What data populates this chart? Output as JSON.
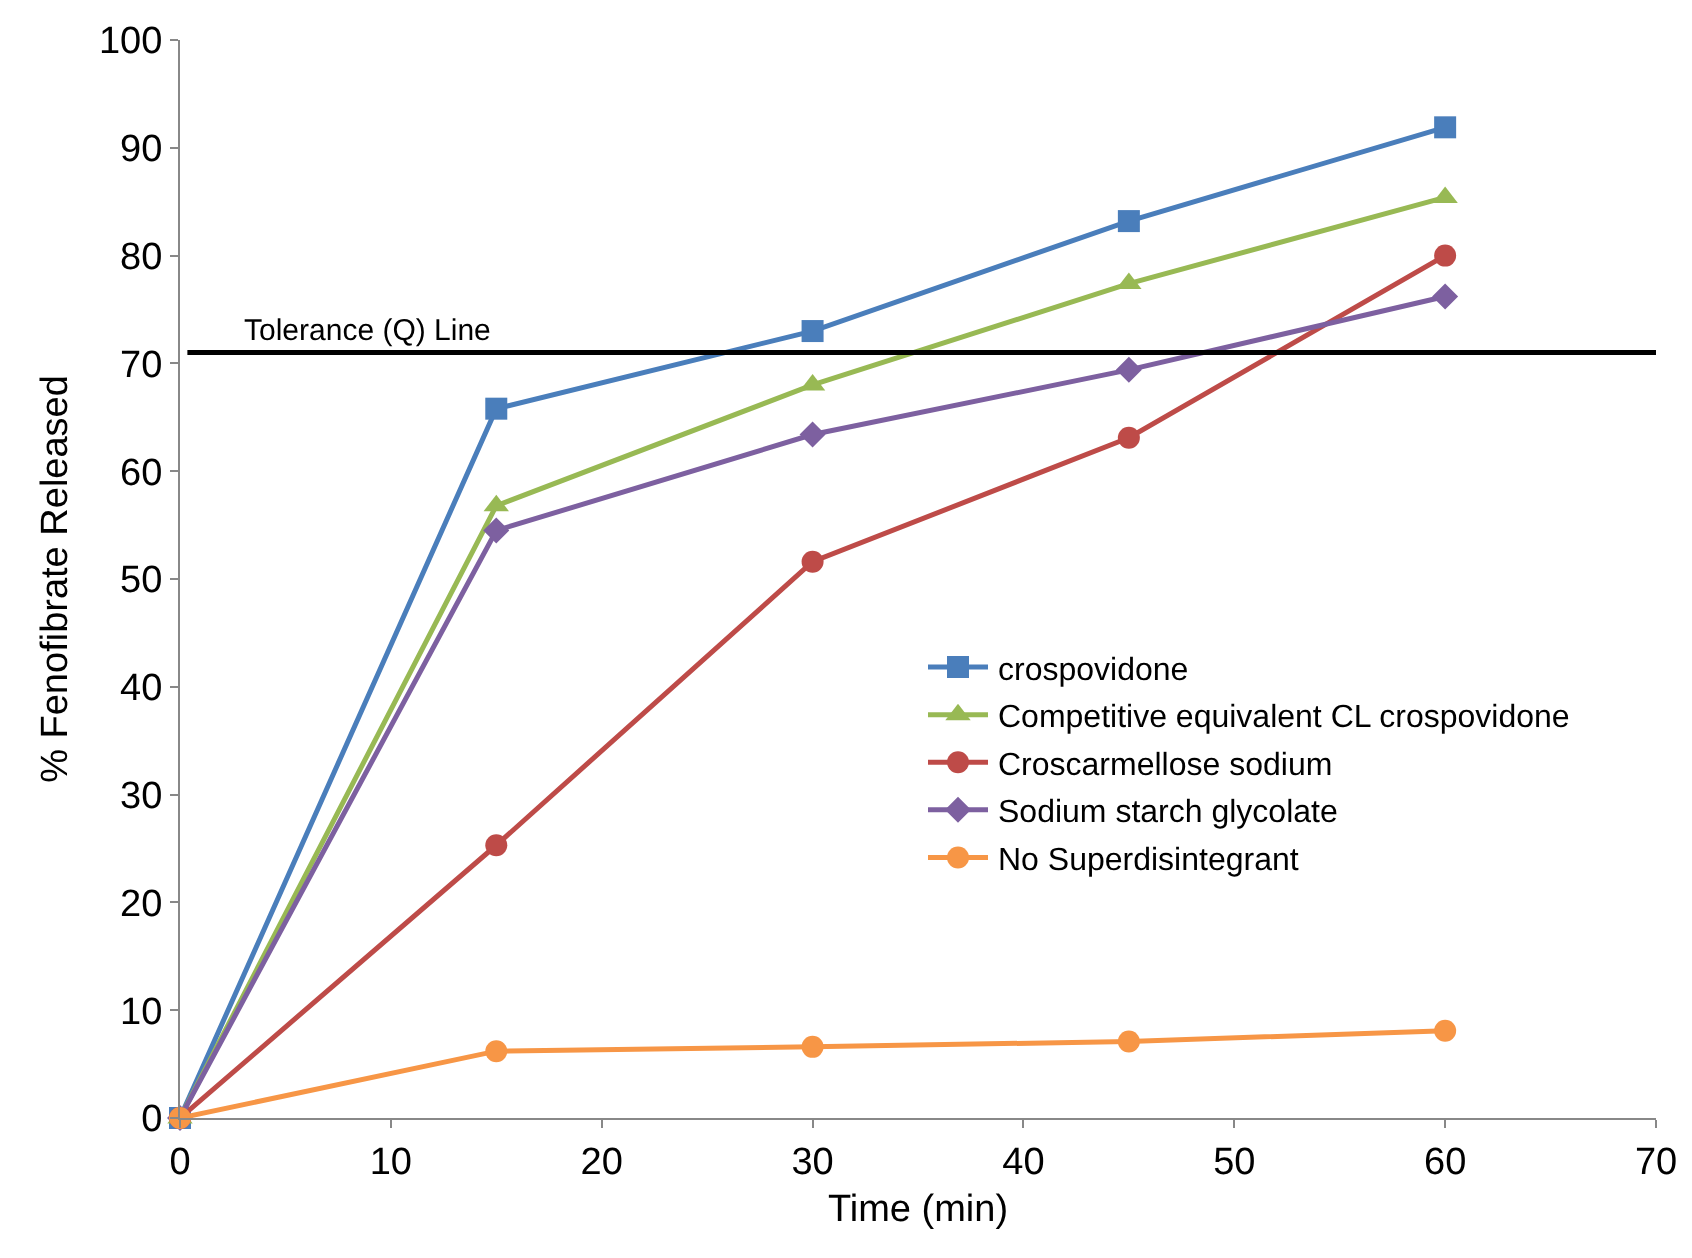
{
  "chart_data": {
    "type": "line",
    "xlabel": "Time (min)",
    "ylabel": "% Fenofibrate Released",
    "x": [
      0,
      15,
      30,
      45,
      60
    ],
    "series": [
      {
        "name": "crospovidone",
        "color": "#4a7ebb",
        "marker": "square",
        "values": [
          0,
          65.8,
          73.0,
          83.2,
          91.9
        ]
      },
      {
        "name": "Competitive equivalent CL crospovidone",
        "color": "#98b954",
        "marker": "triangle",
        "values": [
          0,
          56.8,
          68.0,
          77.4,
          85.4
        ]
      },
      {
        "name": "Croscarmellose sodium",
        "color": "#be4b48",
        "marker": "circle",
        "values": [
          0,
          25.3,
          51.6,
          63.1,
          80.0
        ]
      },
      {
        "name": "Sodium starch glycolate",
        "color": "#7d60a0",
        "marker": "diamond",
        "values": [
          0,
          54.5,
          63.4,
          69.4,
          76.2
        ]
      },
      {
        "name": "No Superdisintegrant",
        "color": "#f79646",
        "marker": "circle",
        "values": [
          0,
          6.2,
          6.6,
          7.1,
          8.1
        ]
      }
    ],
    "xlim": [
      0,
      70
    ],
    "xticks": [
      0,
      10,
      20,
      30,
      40,
      50,
      60,
      70
    ],
    "ylim": [
      0,
      100
    ],
    "yticks": [
      0,
      10,
      20,
      30,
      40,
      50,
      60,
      70,
      80,
      90,
      100
    ],
    "ref_lines": [
      {
        "axis": "y",
        "value": 71,
        "label": "Tolerance (Q) Line",
        "color": "#000000"
      }
    ],
    "grid": false,
    "legend": "right",
    "line_style": "solid"
  }
}
